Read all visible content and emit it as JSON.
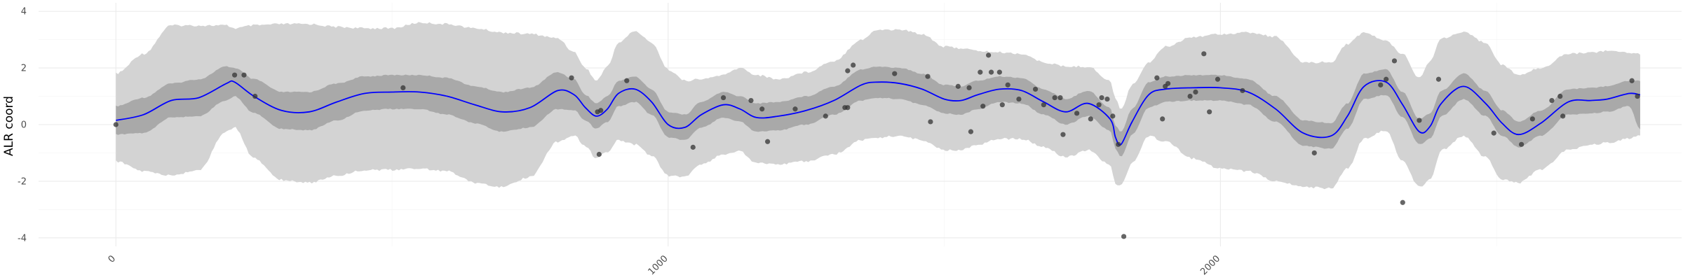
{
  "chart_data": {
    "type": "line",
    "title": "",
    "xlabel": "",
    "ylabel": "ALR coord",
    "xlim": [
      -140,
      2835
    ],
    "ylim": [
      -4.3,
      4.3
    ],
    "x_ticks": [
      0,
      1000,
      2000
    ],
    "x_tick_labels": [
      "0",
      "1000",
      "2000"
    ],
    "y_ticks": [
      -4,
      -2,
      0,
      2,
      4
    ],
    "y_tick_labels": [
      "-4",
      "-2",
      "0",
      "2",
      "4"
    ],
    "grid": true,
    "colors": {
      "mean_line": "#0000ff",
      "inner_band": "#a9a9a9",
      "outer_band": "#d3d3d3",
      "points": "#333333"
    },
    "mean_curve": {
      "x": [
        0,
        50,
        100,
        150,
        200,
        215,
        250,
        300,
        350,
        400,
        450,
        500,
        550,
        600,
        650,
        700,
        750,
        800,
        830,
        850,
        870,
        890,
        910,
        940,
        970,
        1000,
        1030,
        1060,
        1100,
        1130,
        1160,
        1200,
        1250,
        1300,
        1350,
        1380,
        1420,
        1460,
        1500,
        1530,
        1560,
        1600,
        1640,
        1680,
        1720,
        1760,
        1800,
        1810,
        1820,
        1840,
        1870,
        1900,
        1950,
        2000,
        2050,
        2100,
        2150,
        2200,
        2230,
        2260,
        2300,
        2330,
        2360,
        2380,
        2400,
        2440,
        2480,
        2510,
        2540,
        2580,
        2630,
        2670,
        2700,
        2740,
        2760
      ],
      "y": [
        0.15,
        0.35,
        0.85,
        0.95,
        1.45,
        1.5,
        1.0,
        0.5,
        0.45,
        0.8,
        1.1,
        1.15,
        1.15,
        1.0,
        0.7,
        0.45,
        0.6,
        1.2,
        1.05,
        0.6,
        0.3,
        0.55,
        1.1,
        1.25,
        0.8,
        0.0,
        -0.1,
        0.35,
        0.7,
        0.55,
        0.25,
        0.3,
        0.5,
        0.85,
        1.4,
        1.5,
        1.45,
        1.25,
        0.9,
        0.85,
        1.05,
        1.25,
        1.2,
        0.8,
        0.45,
        0.75,
        0.2,
        -0.45,
        -0.7,
        0.1,
        1.05,
        1.25,
        1.3,
        1.3,
        1.15,
        0.55,
        -0.3,
        -0.4,
        0.3,
        1.35,
        1.5,
        0.7,
        -0.25,
        -0.05,
        0.75,
        1.35,
        0.75,
        0.05,
        -0.35,
        0.05,
        0.8,
        0.85,
        0.9,
        1.1,
        1.05
      ]
    },
    "inner_band": {
      "upper": [
        0.65,
        0.95,
        1.45,
        1.6,
        2.05,
        2.0,
        1.6,
        1.15,
        1.15,
        1.45,
        1.7,
        1.75,
        1.75,
        1.65,
        1.35,
        1.15,
        1.3,
        1.85,
        1.6,
        1.05,
        0.75,
        1.0,
        1.55,
        1.7,
        1.25,
        0.45,
        0.35,
        0.8,
        1.15,
        1.0,
        0.75,
        0.8,
        1.0,
        1.35,
        1.95,
        2.05,
        2.0,
        1.8,
        1.4,
        1.35,
        1.55,
        1.7,
        1.65,
        1.25,
        0.9,
        1.2,
        0.6,
        -0.05,
        -0.25,
        0.55,
        1.5,
        1.7,
        1.75,
        1.75,
        1.6,
        1.0,
        0.15,
        0.05,
        0.75,
        1.8,
        1.95,
        1.15,
        0.2,
        0.4,
        1.2,
        1.8,
        1.2,
        0.5,
        0.1,
        0.5,
        1.25,
        1.3,
        1.35,
        1.55,
        1.55
      ],
      "lower": [
        -0.35,
        -0.3,
        0.25,
        0.3,
        0.85,
        1.0,
        0.4,
        -0.15,
        -0.2,
        0.15,
        0.5,
        0.55,
        0.55,
        0.35,
        0.05,
        -0.25,
        -0.1,
        0.55,
        0.5,
        0.15,
        -0.15,
        0.1,
        0.65,
        0.8,
        0.35,
        -0.45,
        -0.55,
        -0.1,
        0.25,
        0.1,
        -0.25,
        -0.2,
        0.0,
        0.35,
        0.85,
        0.95,
        0.9,
        0.7,
        0.4,
        0.35,
        0.55,
        0.8,
        0.75,
        0.35,
        0.0,
        0.3,
        -0.2,
        -0.85,
        -1.15,
        -0.35,
        0.6,
        0.8,
        0.85,
        0.85,
        0.7,
        0.1,
        -0.75,
        -0.85,
        -0.15,
        0.9,
        1.05,
        0.25,
        -0.7,
        -0.5,
        0.3,
        0.9,
        0.3,
        -0.4,
        -0.8,
        -0.4,
        0.35,
        0.4,
        0.45,
        0.65,
        -0.15
      ]
    },
    "outer_band": {
      "upper": [
        1.8,
        2.5,
        3.5,
        3.5,
        3.5,
        3.4,
        3.5,
        3.55,
        3.55,
        3.45,
        3.4,
        3.4,
        3.6,
        3.55,
        3.4,
        3.25,
        3.2,
        3.05,
        2.55,
        2.0,
        1.55,
        2.05,
        2.9,
        3.3,
        2.9,
        1.95,
        1.55,
        1.6,
        1.75,
        2.0,
        1.75,
        1.6,
        1.85,
        2.25,
        3.0,
        3.35,
        3.35,
        3.2,
        2.75,
        2.7,
        2.6,
        2.55,
        2.5,
        2.2,
        2.05,
        2.05,
        1.55,
        0.9,
        0.55,
        1.4,
        2.2,
        2.75,
        3.1,
        3.2,
        3.25,
        3.1,
        2.2,
        2.2,
        2.85,
        3.25,
        2.95,
        2.5,
        1.65,
        2.25,
        3.05,
        3.25,
        2.9,
        2.1,
        1.75,
        2.0,
        2.5,
        2.55,
        2.6,
        2.55,
        2.5
      ],
      "lower": [
        -1.3,
        -1.65,
        -1.8,
        -1.6,
        -0.25,
        -0.1,
        -1.2,
        -1.95,
        -2.05,
        -1.8,
        -1.6,
        -1.6,
        -1.55,
        -1.65,
        -2.05,
        -2.2,
        -1.85,
        -0.6,
        -0.4,
        -0.75,
        -1.2,
        -0.95,
        -0.55,
        -0.7,
        -1.1,
        -1.8,
        -1.85,
        -1.4,
        -1.05,
        -0.95,
        -1.35,
        -1.4,
        -1.3,
        -1.05,
        -0.55,
        -0.45,
        -0.4,
        -0.55,
        -0.9,
        -0.9,
        -0.7,
        -0.5,
        -0.5,
        -0.8,
        -1.15,
        -0.9,
        -1.4,
        -2.1,
        -2.15,
        -1.35,
        -0.4,
        -0.6,
        -1.2,
        -1.55,
        -1.65,
        -2.0,
        -2.2,
        -2.25,
        -1.55,
        -0.5,
        -0.2,
        -1.3,
        -2.2,
        -1.95,
        -0.9,
        -0.4,
        -1.15,
        -1.95,
        -2.05,
        -1.6,
        -0.9,
        -0.7,
        -0.65,
        -0.5,
        -0.35
      ]
    },
    "points": [
      [
        0,
        0.0
      ],
      [
        215,
        1.75
      ],
      [
        232,
        1.75
      ],
      [
        252,
        1.0
      ],
      [
        520,
        1.3
      ],
      [
        825,
        1.65
      ],
      [
        872,
        0.45
      ],
      [
        878,
        0.5
      ],
      [
        875,
        -1.05
      ],
      [
        925,
        1.55
      ],
      [
        1045,
        -0.8
      ],
      [
        1100,
        0.95
      ],
      [
        1150,
        0.85
      ],
      [
        1170,
        0.55
      ],
      [
        1180,
        -0.6
      ],
      [
        1230,
        0.55
      ],
      [
        1285,
        0.3
      ],
      [
        1320,
        0.6
      ],
      [
        1325,
        0.6
      ],
      [
        1325,
        1.9
      ],
      [
        1335,
        2.1
      ],
      [
        1410,
        1.8
      ],
      [
        1470,
        1.7
      ],
      [
        1475,
        0.1
      ],
      [
        1525,
        1.35
      ],
      [
        1545,
        1.3
      ],
      [
        1548,
        -0.25
      ],
      [
        1565,
        1.85
      ],
      [
        1570,
        0.65
      ],
      [
        1580,
        2.45
      ],
      [
        1585,
        1.85
      ],
      [
        1600,
        1.85
      ],
      [
        1605,
        0.7
      ],
      [
        1615,
        1.4
      ],
      [
        1635,
        0.9
      ],
      [
        1665,
        1.25
      ],
      [
        1680,
        0.7
      ],
      [
        1700,
        0.95
      ],
      [
        1710,
        0.95
      ],
      [
        1715,
        -0.35
      ],
      [
        1740,
        0.4
      ],
      [
        1765,
        0.2
      ],
      [
        1780,
        0.7
      ],
      [
        1785,
        0.95
      ],
      [
        1795,
        0.9
      ],
      [
        1805,
        0.3
      ],
      [
        1815,
        -0.7
      ],
      [
        1825,
        -3.95
      ],
      [
        1885,
        1.65
      ],
      [
        1895,
        0.2
      ],
      [
        1900,
        1.35
      ],
      [
        1905,
        1.45
      ],
      [
        1945,
        1.0
      ],
      [
        1955,
        1.15
      ],
      [
        1970,
        2.5
      ],
      [
        1980,
        0.45
      ],
      [
        1995,
        1.6
      ],
      [
        2040,
        1.2
      ],
      [
        2170,
        -1.0
      ],
      [
        2290,
        1.4
      ],
      [
        2300,
        1.6
      ],
      [
        2315,
        2.25
      ],
      [
        2330,
        -2.75
      ],
      [
        2360,
        0.15
      ],
      [
        2395,
        1.6
      ],
      [
        2495,
        -0.3
      ],
      [
        2545,
        -0.7
      ],
      [
        2565,
        0.2
      ],
      [
        2600,
        0.85
      ],
      [
        2615,
        1.0
      ],
      [
        2620,
        0.3
      ],
      [
        2745,
        1.55
      ],
      [
        2755,
        1.0
      ]
    ]
  }
}
